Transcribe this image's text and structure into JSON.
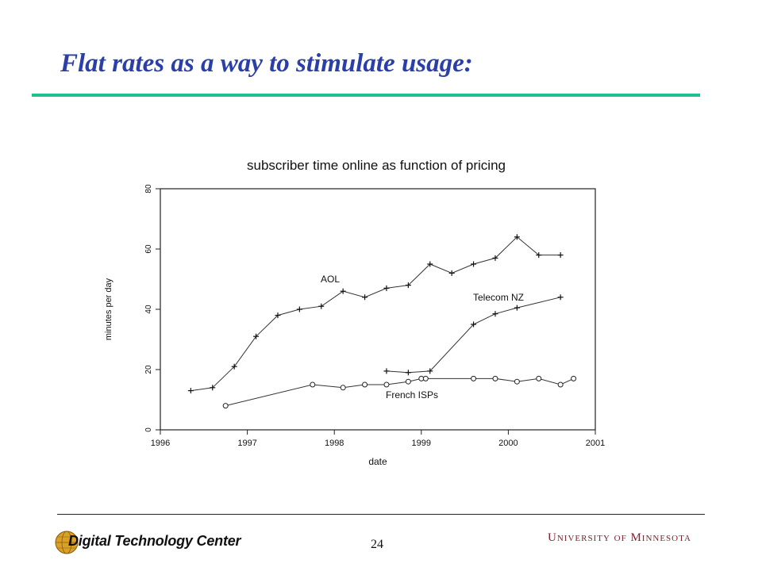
{
  "slide": {
    "title": "Flat rates as a way to stimulate usage:",
    "page_number": "24",
    "footer_left_logo_text": "Digital Technology Center",
    "footer_right_logo_text": "University of Minnesota"
  },
  "colors": {
    "title": "#2b3fa8",
    "title_rule": "#1fc18e",
    "logo_text": "#7a1f2e",
    "globe": "#d9a227"
  },
  "chart_data": {
    "type": "line",
    "title": "subscriber time online as function of pricing",
    "xlabel": "date",
    "ylabel": "minutes per day",
    "xlim": [
      1996,
      2001
    ],
    "ylim": [
      0,
      80
    ],
    "x_ticks": [
      "1996",
      "1997",
      "1998",
      "1999",
      "2000",
      "2001"
    ],
    "y_ticks": [
      "0",
      "20",
      "40",
      "60",
      "80"
    ],
    "grid": false,
    "legend": "none",
    "series": [
      {
        "name": "AOL",
        "marker": "plus",
        "x": [
          1996.35,
          1996.6,
          1996.85,
          1997.1,
          1997.35,
          1997.6,
          1997.85,
          1998.1,
          1998.35,
          1998.6,
          1998.85,
          1999.1,
          1999.35,
          1999.6,
          1999.85,
          2000.1,
          2000.35,
          2000.6
        ],
        "y": [
          13,
          14,
          21,
          31,
          38,
          40,
          41,
          46,
          44,
          47,
          48,
          55,
          52,
          55,
          57,
          64,
          58,
          58
        ]
      },
      {
        "name": "Telecom NZ",
        "marker": "plus",
        "x": [
          1998.6,
          1998.85,
          1999.1,
          1999.6,
          1999.85,
          2000.1,
          2000.6
        ],
        "y": [
          19.5,
          19,
          19.5,
          35,
          38.5,
          40.5,
          44
        ]
      },
      {
        "name": "French ISPs",
        "marker": "circle",
        "x": [
          1996.75,
          1997.75,
          1998.1,
          1998.35,
          1998.6,
          1998.85,
          1999.0,
          1999.05,
          1999.6,
          1999.85,
          2000.1,
          2000.35,
          2000.6,
          2000.75
        ],
        "y": [
          8,
          15,
          14,
          15,
          15,
          16,
          17,
          17,
          17,
          17,
          16,
          17,
          15,
          17
        ]
      }
    ]
  }
}
